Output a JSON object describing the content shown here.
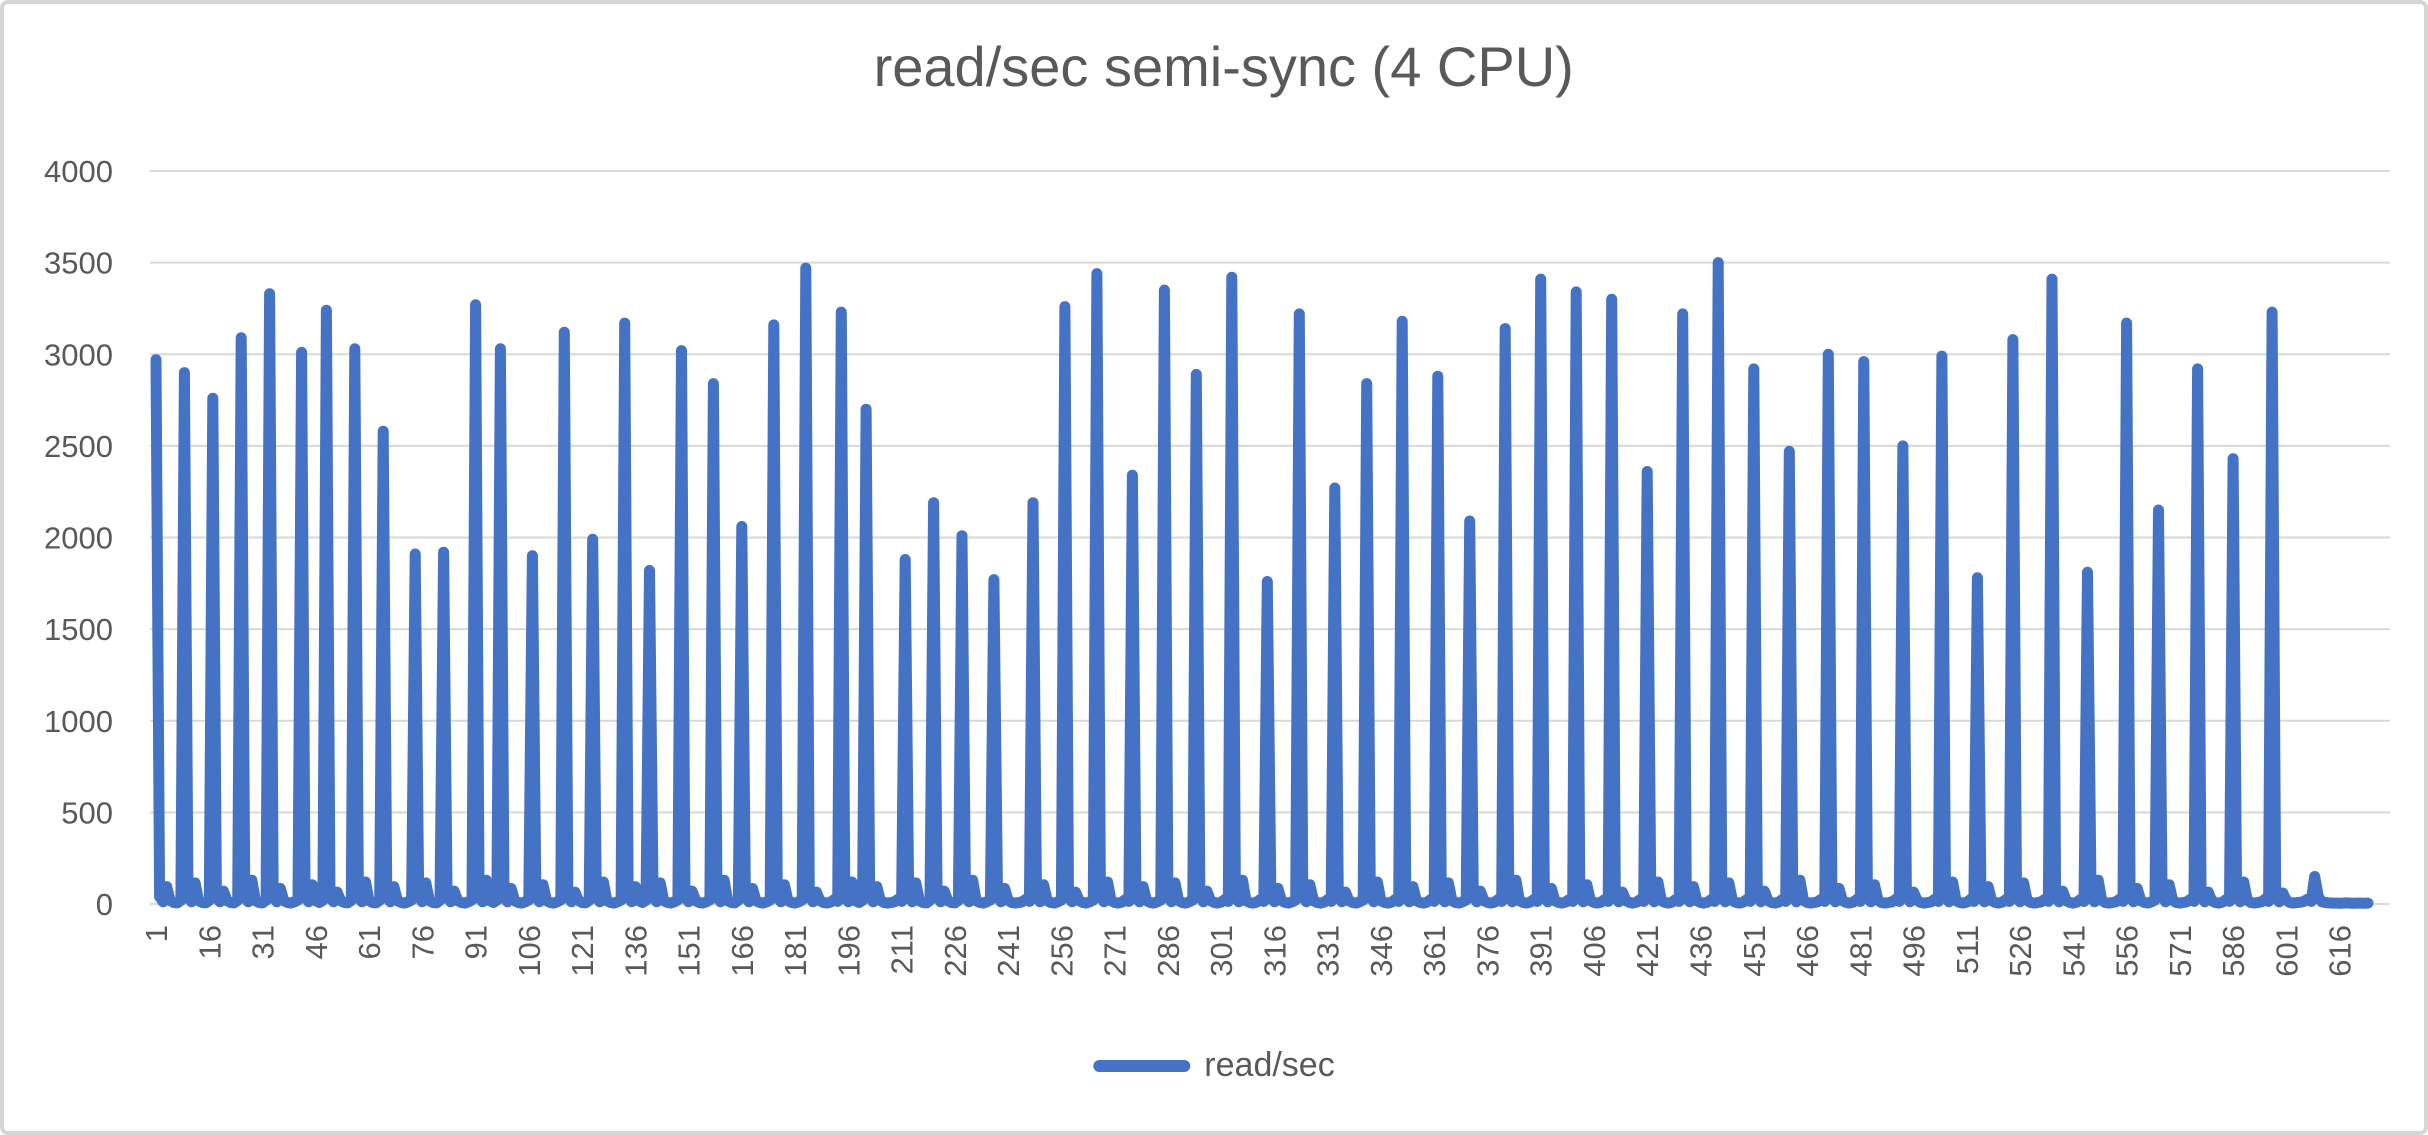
{
  "chart": {
    "title": "read/sec semi-sync (4 CPU)",
    "legend_label": "read/sec"
  },
  "colors": {
    "series": "#4472C4",
    "gridline": "#D9D9D9",
    "labels": "#595959",
    "frame": "#D6D6D6",
    "background": "#FFFFFF"
  },
  "chart_data": {
    "type": "line",
    "title": "read/sec semi-sync (4 CPU)",
    "legend": [
      "read/sec"
    ],
    "legend_position": "bottom",
    "grid": "horizontal",
    "smooth": true,
    "line_color": "#4472C4",
    "x_axis": {
      "label_rotation": -90,
      "tick_step": 15,
      "num_points": 624,
      "tick_labels": [
        1,
        16,
        31,
        46,
        61,
        76,
        91,
        106,
        121,
        136,
        151,
        166,
        181,
        196,
        211,
        226,
        241,
        256,
        271,
        286,
        301,
        316,
        331,
        346,
        361,
        376,
        391,
        406,
        421,
        436,
        451,
        466,
        481,
        496,
        511,
        526,
        541,
        556,
        571,
        586,
        601,
        616
      ]
    },
    "y_axis": {
      "min": 0,
      "max": 4000,
      "tick_interval": 500,
      "tick_labels": [
        0,
        500,
        1000,
        1500,
        2000,
        2500,
        3000,
        3500,
        4000
      ]
    },
    "series": [
      {
        "name": "read/sec",
        "points": [
          2970,
          40,
          12,
          95,
          18,
          8,
          6,
          20,
          2900,
          40,
          12,
          115,
          18,
          8,
          6,
          20,
          2760,
          40,
          12,
          70,
          18,
          8,
          6,
          20,
          3090,
          40,
          12,
          130,
          18,
          8,
          6,
          20,
          3330,
          40,
          12,
          85,
          18,
          8,
          5,
          12,
          22,
          3010,
          40,
          12,
          105,
          18,
          8,
          20,
          3240,
          40,
          12,
          65,
          18,
          8,
          6,
          20,
          3030,
          40,
          12,
          120,
          18,
          8,
          6,
          20,
          2580,
          40,
          12,
          95,
          18,
          8,
          5,
          12,
          22,
          1910,
          40,
          12,
          115,
          18,
          8,
          6,
          20,
          1920,
          40,
          12,
          70,
          18,
          8,
          5,
          12,
          22,
          3270,
          40,
          12,
          130,
          18,
          8,
          20,
          3030,
          40,
          12,
          85,
          18,
          8,
          5,
          12,
          22,
          1900,
          40,
          12,
          105,
          18,
          8,
          5,
          12,
          22,
          3120,
          40,
          12,
          65,
          18,
          8,
          6,
          20,
          1990,
          40,
          12,
          120,
          18,
          8,
          5,
          12,
          22,
          3170,
          40,
          12,
          95,
          18,
          8,
          20,
          1820,
          40,
          12,
          115,
          18,
          8,
          5,
          12,
          22,
          3020,
          40,
          12,
          70,
          18,
          8,
          5,
          12,
          22,
          2840,
          40,
          12,
          130,
          18,
          8,
          6,
          20,
          2060,
          40,
          12,
          85,
          18,
          8,
          5,
          12,
          22,
          3160,
          40,
          12,
          105,
          18,
          8,
          5,
          12,
          22,
          3470,
          45,
          12,
          65,
          18,
          8,
          5,
          10,
          24,
          14,
          3230,
          40,
          12,
          120,
          18,
          8,
          20,
          2700,
          45,
          12,
          95,
          20,
          8,
          5,
          8,
          12,
          26,
          14,
          1880,
          40,
          12,
          115,
          18,
          8,
          6,
          20,
          2190,
          40,
          12,
          70,
          18,
          8,
          6,
          20,
          2010,
          40,
          12,
          130,
          18,
          8,
          5,
          12,
          22,
          1770,
          45,
          12,
          85,
          20,
          8,
          5,
          8,
          12,
          26,
          14,
          2190,
          40,
          12,
          105,
          18,
          8,
          5,
          12,
          22,
          3260,
          40,
          12,
          65,
          18,
          8,
          5,
          12,
          22,
          3440,
          45,
          12,
          120,
          18,
          8,
          5,
          10,
          24,
          14,
          2340,
          40,
          12,
          95,
          18,
          8,
          5,
          12,
          22,
          3350,
          40,
          12,
          115,
          18,
          8,
          5,
          12,
          22,
          2890,
          45,
          12,
          70,
          18,
          8,
          5,
          10,
          24,
          14,
          3420,
          45,
          12,
          130,
          18,
          8,
          5,
          10,
          24,
          14,
          1760,
          40,
          12,
          85,
          18,
          8,
          5,
          12,
          22,
          3220,
          45,
          12,
          105,
          18,
          8,
          5,
          10,
          24,
          14,
          2270,
          40,
          12,
          65,
          18,
          8,
          5,
          12,
          22,
          2840,
          45,
          12,
          120,
          18,
          8,
          5,
          10,
          24,
          14,
          3180,
          45,
          12,
          95,
          18,
          8,
          5,
          10,
          24,
          14,
          2880,
          40,
          12,
          115,
          18,
          8,
          5,
          12,
          22,
          2090,
          45,
          12,
          70,
          18,
          8,
          5,
          10,
          24,
          14,
          3140,
          45,
          12,
          130,
          18,
          8,
          5,
          10,
          24,
          14,
          3410,
          45,
          12,
          85,
          18,
          8,
          5,
          10,
          24,
          14,
          3340,
          45,
          12,
          105,
          18,
          8,
          5,
          10,
          24,
          14,
          3300,
          45,
          12,
          65,
          18,
          8,
          5,
          10,
          24,
          14,
          2360,
          45,
          12,
          120,
          18,
          8,
          5,
          10,
          24,
          14,
          3220,
          45,
          12,
          95,
          18,
          8,
          5,
          10,
          24,
          14,
          3500,
          45,
          12,
          115,
          18,
          8,
          5,
          10,
          24,
          14,
          2920,
          45,
          12,
          70,
          18,
          8,
          5,
          10,
          24,
          14,
          2470,
          45,
          12,
          130,
          20,
          8,
          5,
          8,
          12,
          26,
          14,
          3000,
          45,
          12,
          85,
          18,
          8,
          5,
          10,
          24,
          14,
          2960,
          45,
          12,
          105,
          20,
          8,
          5,
          8,
          12,
          26,
          14,
          2500,
          45,
          12,
          65,
          20,
          8,
          5,
          8,
          12,
          26,
          14,
          2990,
          45,
          12,
          120,
          18,
          8,
          5,
          10,
          24,
          14,
          1780,
          45,
          12,
          95,
          18,
          8,
          5,
          10,
          24,
          14,
          3080,
          45,
          12,
          115,
          20,
          8,
          5,
          8,
          12,
          26,
          14,
          3410,
          45,
          12,
          70,
          18,
          8,
          5,
          10,
          24,
          14,
          1810,
          45,
          12,
          130,
          20,
          8,
          5,
          8,
          12,
          26,
          14,
          3170,
          40,
          12,
          85,
          18,
          8,
          5,
          12,
          22,
          2150,
          45,
          12,
          105,
          20,
          8,
          5,
          8,
          12,
          26,
          14,
          2920,
          45,
          12,
          65,
          18,
          8,
          5,
          10,
          24,
          14,
          2430,
          45,
          12,
          120,
          20,
          8,
          5,
          8,
          12,
          26,
          14,
          3230,
          45,
          12,
          60,
          20,
          8,
          5,
          8,
          10,
          14,
          26,
          14,
          150,
          40,
          12,
          8,
          6,
          5,
          5,
          4,
          5,
          6,
          5,
          4,
          5,
          5,
          4,
          5
        ]
      }
    ]
  }
}
